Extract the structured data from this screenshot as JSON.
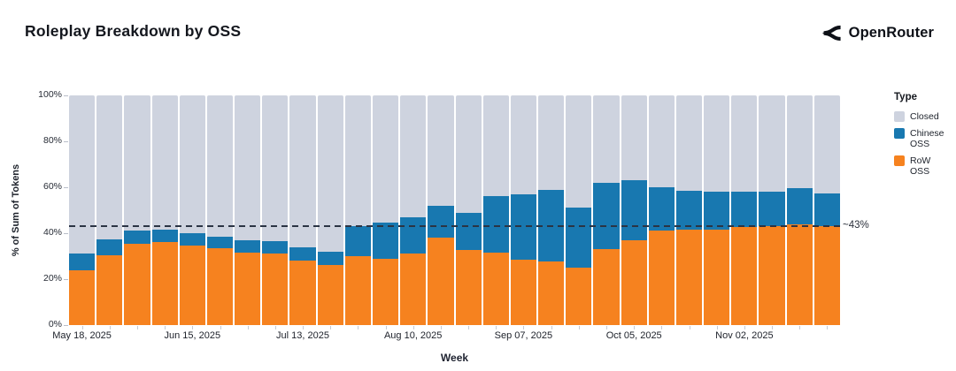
{
  "header": {
    "title": "Roleplay Breakdown by OSS",
    "brand": "OpenRouter"
  },
  "chart_data": {
    "type": "bar",
    "stacked": true,
    "title": "Roleplay Breakdown by OSS",
    "xlabel": "Week",
    "ylabel": "% of Sum of Tokens",
    "ylim": [
      0,
      100
    ],
    "y_ticks": [
      "0%",
      "20%",
      "40%",
      "60%",
      "80%",
      "100%"
    ],
    "x_tick_labels": [
      "May 18, 2025",
      "Jun 15, 2025",
      "Jul 13, 2025",
      "Aug 10, 2025",
      "Sep 07, 2025",
      "Oct 05, 2025",
      "Nov 02, 2025"
    ],
    "x_tick_every": 4,
    "categories": [
      "May 18, 2025",
      "May 25, 2025",
      "Jun 01, 2025",
      "Jun 08, 2025",
      "Jun 15, 2025",
      "Jun 22, 2025",
      "Jun 29, 2025",
      "Jul 06, 2025",
      "Jul 13, 2025",
      "Jul 20, 2025",
      "Jul 27, 2025",
      "Aug 03, 2025",
      "Aug 10, 2025",
      "Aug 17, 2025",
      "Aug 24, 2025",
      "Aug 31, 2025",
      "Sep 07, 2025",
      "Sep 14, 2025",
      "Sep 21, 2025",
      "Sep 28, 2025",
      "Oct 05, 2025",
      "Oct 12, 2025",
      "Oct 19, 2025",
      "Oct 26, 2025",
      "Nov 02, 2025",
      "Nov 09, 2025",
      "Nov 16, 2025",
      "Nov 23, 2025"
    ],
    "series": [
      {
        "name": "Closed",
        "color": "#ced3df",
        "values": [
          69,
          62.5,
          59,
          58.5,
          60,
          61.5,
          63,
          63.5,
          66,
          68,
          57,
          55.5,
          53,
          48,
          51,
          44,
          43,
          41,
          49,
          38,
          37,
          40,
          41.5,
          42,
          42,
          42,
          40.5,
          42.5
        ]
      },
      {
        "name": "Chinese OSS",
        "color": "#1878b0",
        "values": [
          7,
          7,
          5.5,
          5.5,
          5.5,
          5,
          5.5,
          5.5,
          6,
          6,
          13,
          15.5,
          16,
          14,
          16.5,
          24.5,
          28.5,
          31.5,
          26,
          29,
          26,
          19,
          17,
          16.5,
          15.5,
          15,
          15.5,
          14.5
        ]
      },
      {
        "name": "RoW OSS",
        "color": "#f6821f",
        "values": [
          24,
          30.5,
          35.5,
          36,
          34.5,
          33.5,
          31.5,
          31,
          28,
          26,
          30,
          29,
          31,
          38,
          32.5,
          31.5,
          28.5,
          27.5,
          25,
          33,
          37,
          41,
          41.5,
          41.5,
          42.5,
          43,
          44,
          43
        ]
      }
    ],
    "annotation": {
      "label": "~43%",
      "value": 43
    },
    "legend": {
      "title": "Type",
      "position": "right",
      "entries": [
        "Closed",
        "Chinese OSS",
        "RoW OSS"
      ]
    },
    "grid": false
  }
}
